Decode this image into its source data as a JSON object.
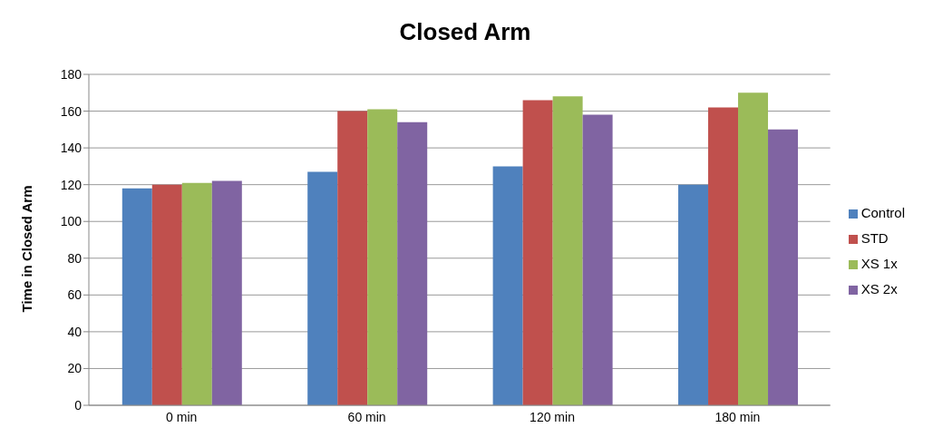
{
  "chart_data": {
    "type": "bar",
    "title": "Closed Arm",
    "ylabel": "Time in Closed Arm",
    "categories": [
      "0 min",
      "60 min",
      "120 min",
      "180 min"
    ],
    "series": [
      {
        "name": "Control",
        "color": "#4f81bd",
        "values": [
          118,
          127,
          130,
          120
        ]
      },
      {
        "name": "STD",
        "color": "#c0504d",
        "values": [
          120,
          160,
          166,
          162
        ]
      },
      {
        "name": "XS 1x",
        "color": "#9bbb59",
        "values": [
          121,
          161,
          168,
          170
        ]
      },
      {
        "name": "XS 2x",
        "color": "#8064a2",
        "values": [
          122,
          154,
          158,
          150
        ]
      }
    ],
    "ylim": [
      0,
      180
    ],
    "yticks": [
      0,
      20,
      40,
      60,
      80,
      100,
      120,
      140,
      160,
      180
    ],
    "grid": "y",
    "legend": "right"
  }
}
